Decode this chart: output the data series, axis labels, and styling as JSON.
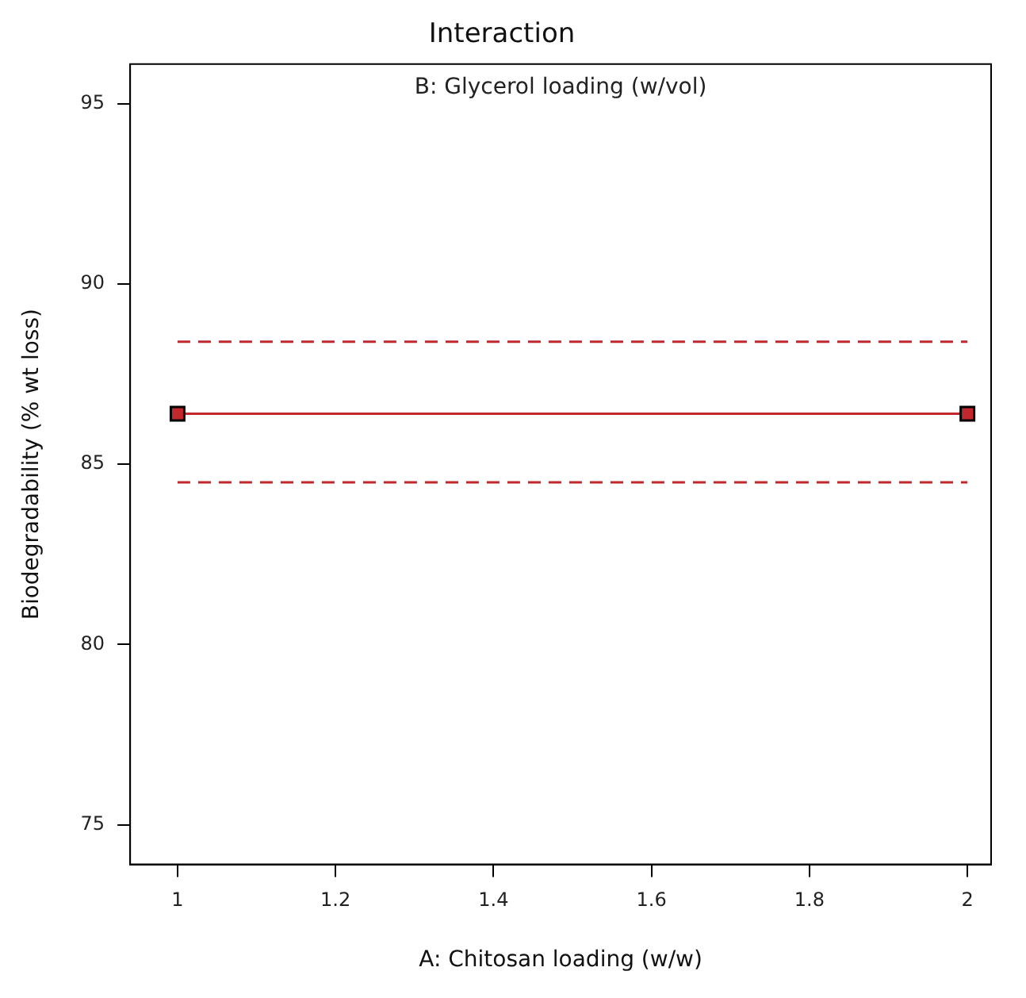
{
  "chart_data": {
    "type": "line",
    "title": "Interaction",
    "subtitle": "B: Glycerol loading (w/vol)",
    "xlabel": "A: Chitosan loading (w/w)",
    "ylabel": "Biodegradability (% wt loss)",
    "x": [
      1,
      2
    ],
    "series": [
      {
        "color": "#c0282d",
        "values": [
          86.4,
          86.4
        ]
      },
      {
        "color": "#c0282d",
        "values": [
          88.4,
          88.4
        ],
        "line_style": "dashed",
        "marker": "none"
      },
      {
        "color": "#c0282d",
        "values": [
          84.5,
          84.5
        ],
        "line_style": "dashed",
        "marker": "none"
      }
    ],
    "xlim": [
      0.94,
      2.03
    ],
    "xticks": [
      1,
      1.2,
      1.4,
      1.6,
      1.8,
      2
    ],
    "ylim": [
      73.9,
      96.1
    ],
    "yticks": [
      75,
      80,
      85,
      90,
      95
    ],
    "grid": false,
    "legend": false,
    "marker": "square",
    "line_style": "solid"
  }
}
